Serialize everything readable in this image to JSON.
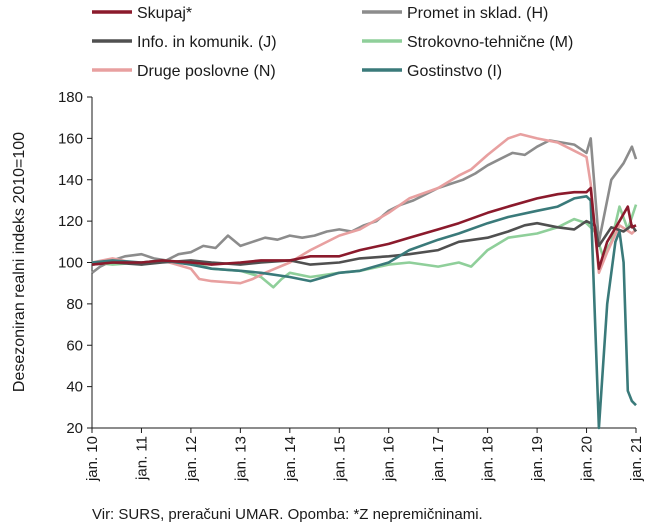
{
  "chart_data": {
    "type": "line",
    "ylabel": "Desezoniran realni indeks 2010=100",
    "ylim": [
      20,
      180
    ],
    "yticks": [
      20,
      40,
      60,
      80,
      100,
      120,
      140,
      160,
      180
    ],
    "xlim": [
      "2010-01",
      "2021-01"
    ],
    "xticks": [
      "jan. 10",
      "jan. 11",
      "jan. 12",
      "jan. 13",
      "jan. 14",
      "jan. 15",
      "jan. 16",
      "jan. 17",
      "jan. 18",
      "jan. 19",
      "jan. 20",
      "jan. 21"
    ],
    "grid": false,
    "legend": "top",
    "note": "Vir: SURS, preračuni UMAR. Opomba: *Z nepremičninami.",
    "series": [
      {
        "name": "Promet in sklad. (H)",
        "color": "#8c8c8c",
        "points": [
          [
            "2010-01",
            95
          ],
          [
            "2010-03",
            98
          ],
          [
            "2010-06",
            101
          ],
          [
            "2010-09",
            103
          ],
          [
            "2011-01",
            104
          ],
          [
            "2011-04",
            102
          ],
          [
            "2011-07",
            101
          ],
          [
            "2011-10",
            104
          ],
          [
            "2012-01",
            105
          ],
          [
            "2012-04",
            108
          ],
          [
            "2012-07",
            107
          ],
          [
            "2012-10",
            113
          ],
          [
            "2013-01",
            108
          ],
          [
            "2013-04",
            110
          ],
          [
            "2013-07",
            112
          ],
          [
            "2013-10",
            111
          ],
          [
            "2014-01",
            113
          ],
          [
            "2014-04",
            112
          ],
          [
            "2014-07",
            113
          ],
          [
            "2014-10",
            115
          ],
          [
            "2015-01",
            116
          ],
          [
            "2015-04",
            115
          ],
          [
            "2015-07",
            118
          ],
          [
            "2015-10",
            120
          ],
          [
            "2016-01",
            125
          ],
          [
            "2016-04",
            128
          ],
          [
            "2016-07",
            130
          ],
          [
            "2016-10",
            133
          ],
          [
            "2017-01",
            136
          ],
          [
            "2017-04",
            138
          ],
          [
            "2017-07",
            140
          ],
          [
            "2017-10",
            143
          ],
          [
            "2018-01",
            147
          ],
          [
            "2018-04",
            150
          ],
          [
            "2018-07",
            153
          ],
          [
            "2018-10",
            152
          ],
          [
            "2019-01",
            156
          ],
          [
            "2019-04",
            159
          ],
          [
            "2019-07",
            158
          ],
          [
            "2019-10",
            157
          ],
          [
            "2020-01",
            153
          ],
          [
            "2020-02",
            160
          ],
          [
            "2020-04",
            110
          ],
          [
            "2020-07",
            140
          ],
          [
            "2020-10",
            148
          ],
          [
            "2020-12",
            156
          ],
          [
            "2021-01",
            150
          ]
        ]
      },
      {
        "name": "Strokovno-tehnične (M)",
        "color": "#8fcf9a",
        "points": [
          [
            "2010-01",
            100
          ],
          [
            "2010-06",
            99
          ],
          [
            "2011-01",
            100
          ],
          [
            "2011-06",
            101
          ],
          [
            "2012-01",
            100
          ],
          [
            "2012-06",
            97
          ],
          [
            "2013-01",
            96
          ],
          [
            "2013-06",
            93
          ],
          [
            "2013-09",
            88
          ],
          [
            "2013-11",
            92
          ],
          [
            "2014-01",
            95
          ],
          [
            "2014-06",
            93
          ],
          [
            "2015-01",
            95
          ],
          [
            "2015-06",
            96
          ],
          [
            "2016-01",
            99
          ],
          [
            "2016-06",
            100
          ],
          [
            "2017-01",
            98
          ],
          [
            "2017-06",
            100
          ],
          [
            "2017-09",
            98
          ],
          [
            "2018-01",
            106
          ],
          [
            "2018-06",
            112
          ],
          [
            "2019-01",
            114
          ],
          [
            "2019-06",
            117
          ],
          [
            "2019-10",
            121
          ],
          [
            "2020-01",
            119
          ],
          [
            "2020-03",
            115
          ],
          [
            "2020-05",
            103
          ],
          [
            "2020-07",
            110
          ],
          [
            "2020-09",
            127
          ],
          [
            "2020-11",
            116
          ],
          [
            "2021-01",
            128
          ]
        ]
      },
      {
        "name": "Druge poslovne (N)",
        "color": "#e8a0a0",
        "points": [
          [
            "2010-01",
            100
          ],
          [
            "2010-06",
            102
          ],
          [
            "2011-01",
            99
          ],
          [
            "2011-06",
            101
          ],
          [
            "2012-01",
            97
          ],
          [
            "2012-03",
            92
          ],
          [
            "2012-06",
            91
          ],
          [
            "2013-01",
            90
          ],
          [
            "2013-04",
            92
          ],
          [
            "2013-07",
            95
          ],
          [
            "2014-01",
            100
          ],
          [
            "2014-06",
            106
          ],
          [
            "2015-01",
            113
          ],
          [
            "2015-06",
            116
          ],
          [
            "2016-01",
            124
          ],
          [
            "2016-06",
            131
          ],
          [
            "2017-01",
            136
          ],
          [
            "2017-06",
            142
          ],
          [
            "2017-09",
            145
          ],
          [
            "2018-01",
            152
          ],
          [
            "2018-06",
            160
          ],
          [
            "2018-09",
            162
          ],
          [
            "2019-01",
            160
          ],
          [
            "2019-06",
            158
          ],
          [
            "2019-09",
            155
          ],
          [
            "2020-01",
            151
          ],
          [
            "2020-02",
            138
          ],
          [
            "2020-04",
            95
          ],
          [
            "2020-06",
            105
          ],
          [
            "2020-09",
            118
          ],
          [
            "2020-12",
            114
          ],
          [
            "2021-01",
            116
          ]
        ]
      },
      {
        "name": "Info. in komunik. (J)",
        "color": "#505050",
        "points": [
          [
            "2010-01",
            99
          ],
          [
            "2010-06",
            100
          ],
          [
            "2011-01",
            99
          ],
          [
            "2011-06",
            100
          ],
          [
            "2012-01",
            101
          ],
          [
            "2012-06",
            100
          ],
          [
            "2013-01",
            99
          ],
          [
            "2013-06",
            100
          ],
          [
            "2014-01",
            101
          ],
          [
            "2014-06",
            99
          ],
          [
            "2015-01",
            100
          ],
          [
            "2015-06",
            102
          ],
          [
            "2016-01",
            103
          ],
          [
            "2016-06",
            104
          ],
          [
            "2017-01",
            106
          ],
          [
            "2017-06",
            110
          ],
          [
            "2018-01",
            112
          ],
          [
            "2018-06",
            115
          ],
          [
            "2018-10",
            118
          ],
          [
            "2019-01",
            119
          ],
          [
            "2019-06",
            117
          ],
          [
            "2019-10",
            116
          ],
          [
            "2020-01",
            120
          ],
          [
            "2020-03",
            118
          ],
          [
            "2020-04",
            108
          ],
          [
            "2020-07",
            117
          ],
          [
            "2020-10",
            115
          ],
          [
            "2020-12",
            118
          ],
          [
            "2021-01",
            115
          ]
        ]
      },
      {
        "name": "Gostinstvo (I)",
        "color": "#3a7a7a",
        "points": [
          [
            "2010-01",
            100
          ],
          [
            "2010-06",
            101
          ],
          [
            "2011-01",
            100
          ],
          [
            "2011-06",
            101
          ],
          [
            "2012-01",
            99
          ],
          [
            "2012-06",
            97
          ],
          [
            "2013-01",
            96
          ],
          [
            "2013-06",
            95
          ],
          [
            "2014-01",
            93
          ],
          [
            "2014-06",
            91
          ],
          [
            "2015-01",
            95
          ],
          [
            "2015-06",
            96
          ],
          [
            "2016-01",
            100
          ],
          [
            "2016-06",
            106
          ],
          [
            "2017-01",
            111
          ],
          [
            "2017-06",
            114
          ],
          [
            "2018-01",
            119
          ],
          [
            "2018-06",
            122
          ],
          [
            "2019-01",
            125
          ],
          [
            "2019-06",
            127
          ],
          [
            "2019-10",
            131
          ],
          [
            "2020-01",
            132
          ],
          [
            "2020-02",
            130
          ],
          [
            "2020-04",
            20
          ],
          [
            "2020-06",
            80
          ],
          [
            "2020-08",
            110
          ],
          [
            "2020-09",
            115
          ],
          [
            "2020-10",
            100
          ],
          [
            "2020-11",
            38
          ],
          [
            "2020-12",
            33
          ],
          [
            "2021-01",
            31
          ]
        ]
      },
      {
        "name": "Skupaj*",
        "color": "#8b1a2c",
        "points": [
          [
            "2010-01",
            99
          ],
          [
            "2010-06",
            100
          ],
          [
            "2011-01",
            100
          ],
          [
            "2011-06",
            101
          ],
          [
            "2012-01",
            100
          ],
          [
            "2012-06",
            99
          ],
          [
            "2013-01",
            100
          ],
          [
            "2013-06",
            101
          ],
          [
            "2014-01",
            101
          ],
          [
            "2014-06",
            103
          ],
          [
            "2015-01",
            103
          ],
          [
            "2015-06",
            106
          ],
          [
            "2016-01",
            109
          ],
          [
            "2016-06",
            112
          ],
          [
            "2017-01",
            116
          ],
          [
            "2017-06",
            119
          ],
          [
            "2018-01",
            124
          ],
          [
            "2018-06",
            127
          ],
          [
            "2019-01",
            131
          ],
          [
            "2019-06",
            133
          ],
          [
            "2019-10",
            134
          ],
          [
            "2020-01",
            134
          ],
          [
            "2020-02",
            136
          ],
          [
            "2020-04",
            97
          ],
          [
            "2020-06",
            110
          ],
          [
            "2020-09",
            120
          ],
          [
            "2020-11",
            127
          ],
          [
            "2020-12",
            117
          ],
          [
            "2021-01",
            118
          ]
        ]
      }
    ]
  },
  "legend_items": [
    {
      "name": "Skupaj*",
      "color": "#8b1a2c"
    },
    {
      "name": "Promet in sklad. (H)",
      "color": "#8c8c8c"
    },
    {
      "name": "Info. in komunik. (J)",
      "color": "#505050"
    },
    {
      "name": "Strokovno-tehnične (M)",
      "color": "#8fcf9a"
    },
    {
      "name": "Druge poslovne (N)",
      "color": "#e8a0a0"
    },
    {
      "name": "Gostinstvo (I)",
      "color": "#3a7a7a"
    }
  ]
}
